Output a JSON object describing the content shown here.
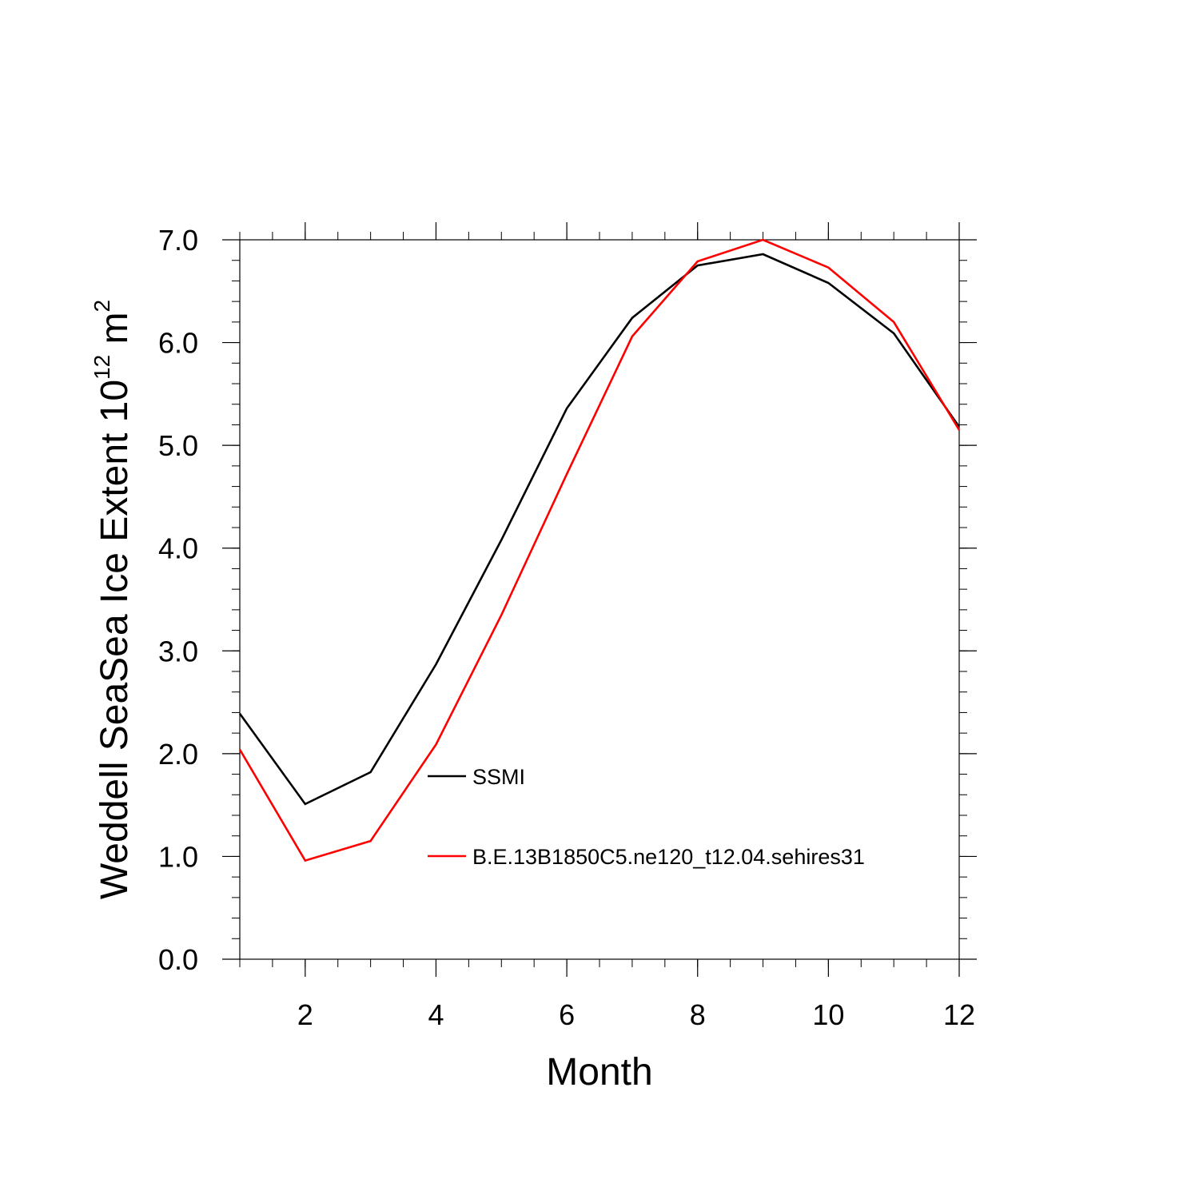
{
  "chart_data": {
    "type": "line",
    "xlabel": "Month",
    "ylabel": {
      "prefix": "Weddell SeaSea Ice Extent 10",
      "exponent": "12",
      "unit": " m",
      "unit_exponent": "2"
    },
    "xlim": [
      1,
      12
    ],
    "ylim": [
      0,
      7
    ],
    "x_ticks": [
      2,
      4,
      6,
      8,
      10,
      12
    ],
    "x_tick_labels": [
      "2",
      "4",
      "6",
      "8",
      "10",
      "12"
    ],
    "y_ticks": [
      0,
      1,
      2,
      3,
      4,
      5,
      6,
      7
    ],
    "y_tick_labels": [
      "0.0",
      "1.0",
      "2.0",
      "3.0",
      "4.0",
      "5.0",
      "6.0",
      "7.0"
    ],
    "grid": false,
    "legend_position": "center",
    "x": [
      1,
      2,
      3,
      4,
      5,
      6,
      7,
      8,
      9,
      10,
      11,
      12
    ],
    "series": [
      {
        "name": "SSMI",
        "color": "#000000",
        "values": [
          2.39,
          1.51,
          1.82,
          2.87,
          4.08,
          5.36,
          6.24,
          6.75,
          6.86,
          6.58,
          6.09,
          5.18
        ]
      },
      {
        "name": "B.E.13B1850C5.ne120_t12.04.sehires31",
        "color": "#ff0000",
        "values": [
          2.04,
          0.96,
          1.15,
          2.09,
          3.35,
          4.72,
          6.06,
          6.79,
          7.0,
          6.73,
          6.2,
          5.15
        ]
      }
    ]
  }
}
